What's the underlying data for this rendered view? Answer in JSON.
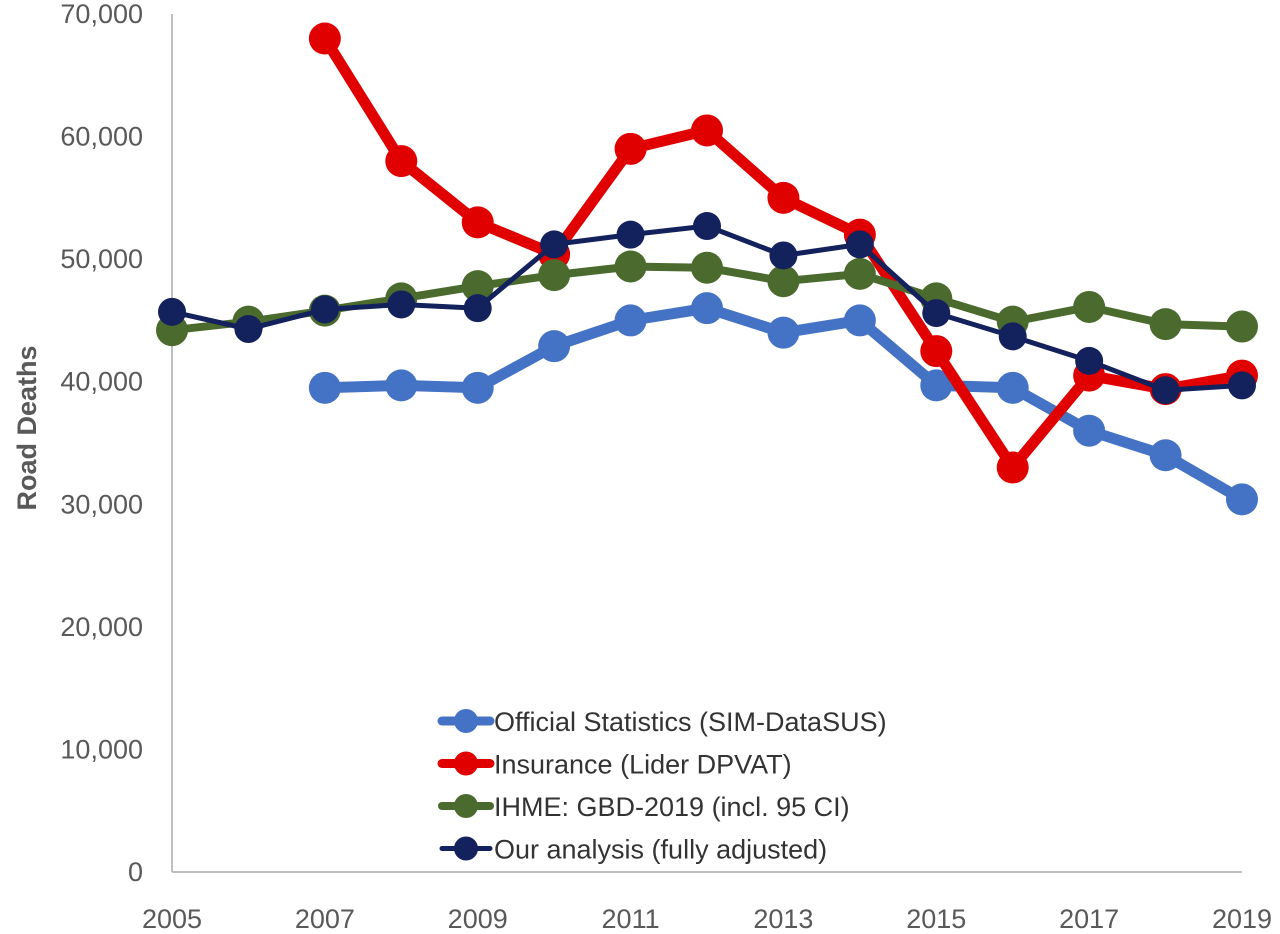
{
  "chart_data": {
    "type": "line",
    "title": "",
    "xlabel": "",
    "ylabel": "Road Deaths",
    "xlim": [
      2005,
      2019
    ],
    "ylim": [
      0,
      70000
    ],
    "x_ticks": [
      "2005",
      "2007",
      "2009",
      "2011",
      "2013",
      "2015",
      "2017",
      "2019"
    ],
    "y_ticks": [
      "0",
      "10,000",
      "20,000",
      "30,000",
      "40,000",
      "50,000",
      "60,000",
      "70,000"
    ],
    "grid": false,
    "legend_position": "bottom-center",
    "series": [
      {
        "name": "Official Statistics (SIM-DataSUS)",
        "color": "#4472C4",
        "x": [
          2007,
          2008,
          2009,
          2010,
          2011,
          2012,
          2013,
          2014,
          2015,
          2016,
          2017,
          2018,
          2019
        ],
        "values": [
          39500,
          39700,
          39500,
          42900,
          45000,
          46000,
          44000,
          45000,
          39700,
          39500,
          36000,
          34000,
          30400
        ]
      },
      {
        "name": "Insurance (Lider DPVAT)",
        "color": "#E00000",
        "x": [
          2007,
          2008,
          2009,
          2010,
          2011,
          2012,
          2013,
          2014,
          2015,
          2016,
          2017,
          2018,
          2019
        ],
        "values": [
          68000,
          58000,
          53000,
          50400,
          59000,
          60500,
          55000,
          52000,
          42500,
          33000,
          40500,
          39400,
          40500
        ]
      },
      {
        "name": "IHME: GBD-2019 (incl. 95 CI)",
        "color": "#4B6A2E",
        "x": [
          2005,
          2006,
          2007,
          2008,
          2009,
          2010,
          2011,
          2012,
          2013,
          2014,
          2015,
          2016,
          2017,
          2018,
          2019
        ],
        "values": [
          44200,
          44900,
          45800,
          46800,
          47800,
          48700,
          49400,
          49300,
          48200,
          48800,
          46800,
          44900,
          46100,
          44700,
          44500
        ]
      },
      {
        "name": "Our analysis (fully adjusted)",
        "color": "#13215C",
        "x": [
          2005,
          2006,
          2007,
          2008,
          2009,
          2010,
          2011,
          2012,
          2013,
          2014,
          2015,
          2016,
          2017,
          2018,
          2019
        ],
        "values": [
          45700,
          44300,
          45900,
          46300,
          46000,
          51200,
          52000,
          52700,
          50300,
          51200,
          45600,
          43700,
          41700,
          39300,
          39700
        ]
      }
    ]
  }
}
